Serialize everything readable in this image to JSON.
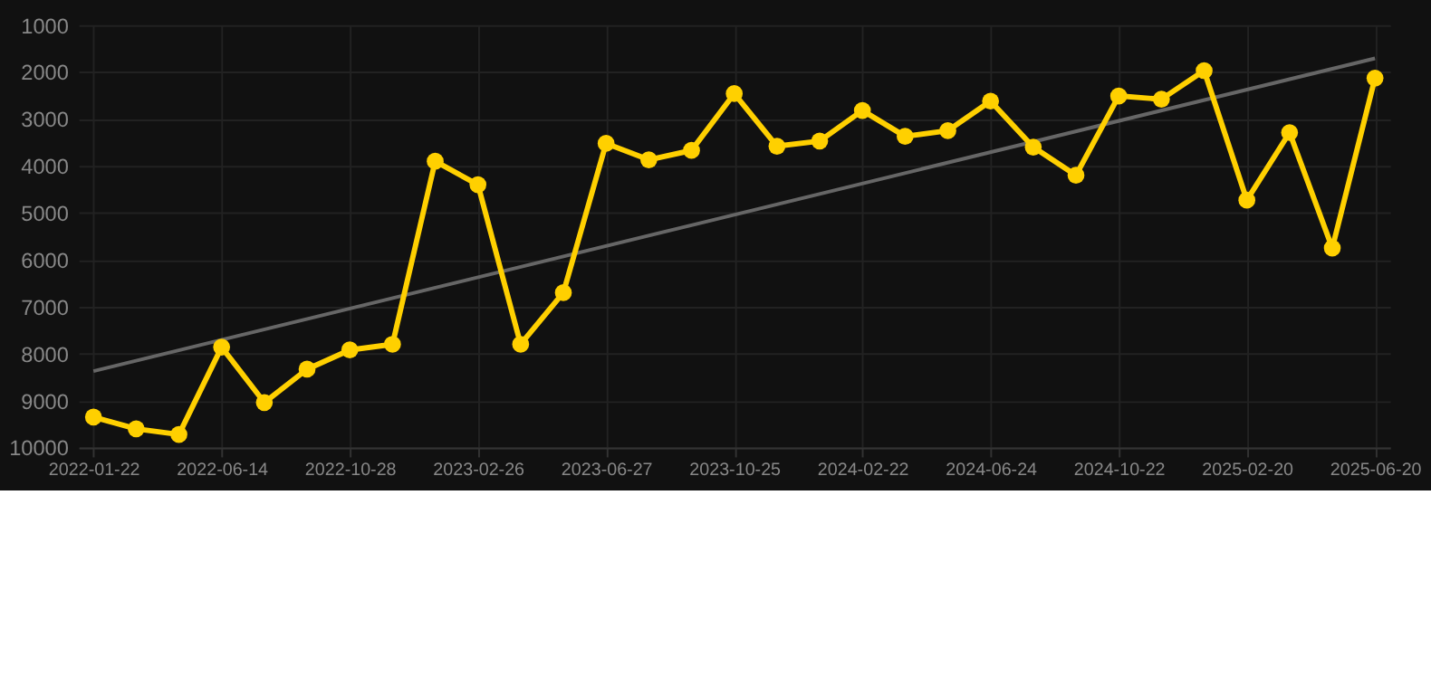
{
  "chart_data": {
    "type": "line",
    "categories": [
      "2022-01-22",
      null,
      null,
      "2022-06-14",
      null,
      null,
      "2022-10-28",
      null,
      null,
      "2023-02-26",
      null,
      null,
      "2023-06-27",
      null,
      null,
      "2023-10-25",
      null,
      null,
      "2024-02-22",
      null,
      null,
      "2024-06-24",
      null,
      null,
      "2024-10-22",
      null,
      null,
      "2025-02-20",
      null,
      null,
      "2025-06-20"
    ],
    "series": [
      {
        "color": "#ffd000",
        "marker": "circle",
        "values": [
          9350,
          9600,
          9720,
          7860,
          9040,
          8330,
          7920,
          7800,
          3900,
          4400,
          7800,
          6700,
          3520,
          3870,
          3670,
          2460,
          3580,
          3470,
          2820,
          3370,
          3250,
          2620,
          3600,
          4200,
          2510,
          2580,
          1970,
          4730,
          3290,
          5750,
          2130
        ]
      },
      {
        "type": "line",
        "color": "#666666",
        "marker": "none",
        "values": [
          8370,
          null,
          null,
          null,
          null,
          null,
          null,
          null,
          null,
          null,
          null,
          null,
          null,
          null,
          null,
          null,
          null,
          null,
          null,
          null,
          null,
          null,
          null,
          null,
          null,
          null,
          null,
          null,
          null,
          null,
          1710
        ]
      }
    ],
    "ylim": [
      10000,
      1000
    ],
    "yticks": [
      1000,
      2000,
      3000,
      4000,
      5000,
      6000,
      7000,
      8000,
      9000,
      10000
    ],
    "grid": true,
    "line_style": "solid"
  }
}
